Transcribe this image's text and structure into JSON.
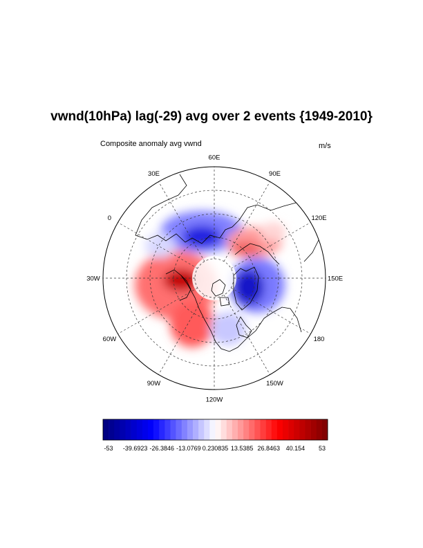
{
  "title": "vwnd(10hPa) lag(-29) avg over 2 events {1949-2010}",
  "subtitle_left": "Composite anomaly avg vwnd",
  "subtitle_right": "m/s",
  "map": {
    "projection": "north-polar-stereographic",
    "longitude_labels": [
      {
        "text": "60E",
        "lon": 60
      },
      {
        "text": "30E",
        "lon": 30
      },
      {
        "text": "0",
        "lon": 0
      },
      {
        "text": "30W",
        "lon": -30
      },
      {
        "text": "60W",
        "lon": -60
      },
      {
        "text": "90W",
        "lon": -90
      },
      {
        "text": "120W",
        "lon": -120
      },
      {
        "text": "150W",
        "lon": -150
      },
      {
        "text": "180",
        "lon": 180
      },
      {
        "text": "150E",
        "lon": 150
      },
      {
        "text": "120E",
        "lon": 120
      },
      {
        "text": "90E",
        "lon": 90
      }
    ],
    "anomaly_centers": [
      {
        "sign": "negative",
        "region": "Siberia / Central Asia",
        "strength": 0.7
      },
      {
        "sign": "positive",
        "region": "Scandinavia / Arctic Europe",
        "strength": 0.55
      },
      {
        "sign": "negative",
        "region": "Greenland / Canadian Arctic",
        "strength": 0.85
      },
      {
        "sign": "positive",
        "region": "Bering Sea / Alaska",
        "strength": 1.0
      },
      {
        "sign": "positive",
        "region": "North Pacific",
        "strength": 0.8
      },
      {
        "sign": "negative",
        "region": "Western Canada",
        "strength": 0.35
      }
    ]
  },
  "colorbar": {
    "min": -53,
    "max": 53,
    "levels": 40,
    "colors": {
      "min_color": "#00007a",
      "mid_color": "#ffffff",
      "max_color": "#7a0000"
    },
    "tick_labels": [
      "-53",
      "-39.6923",
      "-26.3846",
      "-13.0769",
      "0.230835",
      "13.5385",
      "26.8463",
      "40.154",
      "53"
    ]
  }
}
